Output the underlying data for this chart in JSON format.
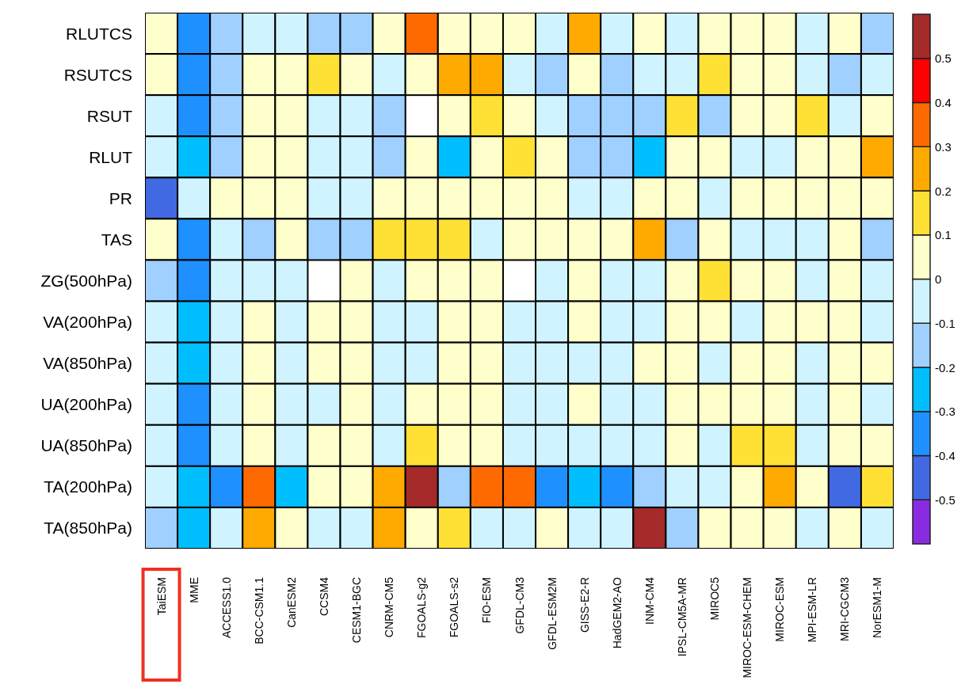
{
  "chart_data": {
    "type": "heatmap",
    "categories": [
      "TaiESM",
      "MME",
      "ACCESS1.0",
      "BCC-CSM1.1",
      "CanESM2",
      "CCSM4",
      "CESM1-BGC",
      "CNRM-CM5",
      "FGOALS-g2",
      "FGOALS-s2",
      "FIO-ESM",
      "GFDL-CM3",
      "GFDL-ESM2M",
      "GISS-E2-R",
      "HadGEM2-AO",
      "INM-CM4",
      "IPSL-CM5A-MR",
      "MIROC5",
      "MIROC-ESM-CHEM",
      "MIROC-ESM",
      "MPI-ESM-LR",
      "MRI-CGCM3",
      "NorESM1-M"
    ],
    "y_categories": [
      "RLUTCS",
      "RSUTCS",
      "RSUT",
      "RLUT",
      "PR",
      "TAS",
      "ZG(500hPa)",
      "VA(200hPa)",
      "VA(850hPa)",
      "UA(200hPa)",
      "UA(850hPa)",
      "TA(200hPa)",
      "TA(850hPa)"
    ],
    "cells": [
      [
        0.05,
        -0.35,
        -0.15,
        -0.05,
        -0.05,
        -0.15,
        -0.15,
        0.05,
        0.35,
        0.05,
        0.05,
        0.05,
        -0.05,
        0.25,
        -0.05,
        0.05,
        -0.05,
        0.05,
        0.05,
        0.05,
        -0.05,
        0.05,
        -0.15
      ],
      [
        0.05,
        -0.35,
        -0.15,
        0.05,
        0.05,
        0.15,
        0.05,
        -0.05,
        0.05,
        0.25,
        0.25,
        -0.05,
        -0.15,
        0.05,
        -0.15,
        -0.05,
        -0.05,
        0.15,
        0.05,
        0.05,
        -0.05,
        -0.15,
        -0.05
      ],
      [
        -0.05,
        -0.35,
        -0.15,
        0.05,
        0.05,
        -0.05,
        -0.05,
        -0.15,
        null,
        0.05,
        0.15,
        0.05,
        -0.05,
        -0.15,
        -0.15,
        -0.15,
        0.15,
        -0.15,
        0.05,
        0.05,
        0.15,
        -0.05,
        0.05
      ],
      [
        -0.05,
        -0.25,
        -0.15,
        0.05,
        0.05,
        -0.05,
        -0.05,
        -0.15,
        0.05,
        -0.25,
        0.05,
        0.15,
        0.05,
        -0.15,
        -0.15,
        -0.25,
        0.05,
        0.05,
        -0.05,
        -0.05,
        0.05,
        0.05,
        0.25
      ],
      [
        -0.45,
        -0.05,
        0.05,
        0.05,
        0.05,
        -0.05,
        -0.05,
        0.05,
        0.05,
        0.05,
        0.05,
        0.05,
        0.05,
        -0.05,
        -0.05,
        0.05,
        0.05,
        -0.05,
        0.05,
        0.05,
        0.05,
        0.05,
        0.05
      ],
      [
        0.05,
        -0.35,
        -0.05,
        -0.15,
        0.05,
        -0.15,
        -0.15,
        0.15,
        0.15,
        0.15,
        -0.05,
        0.05,
        0.05,
        0.05,
        0.05,
        0.25,
        -0.15,
        0.05,
        -0.05,
        -0.05,
        -0.05,
        0.05,
        -0.15
      ],
      [
        -0.15,
        -0.35,
        -0.05,
        -0.05,
        -0.05,
        null,
        0.05,
        -0.05,
        0.05,
        0.05,
        0.05,
        null,
        -0.05,
        0.05,
        -0.05,
        -0.05,
        0.05,
        0.15,
        0.05,
        0.05,
        -0.05,
        0.05,
        -0.05
      ],
      [
        -0.05,
        -0.25,
        -0.05,
        0.05,
        -0.05,
        0.05,
        0.05,
        -0.05,
        -0.05,
        0.05,
        0.05,
        -0.05,
        -0.05,
        0.05,
        -0.05,
        -0.05,
        0.05,
        0.05,
        -0.05,
        0.05,
        0.05,
        0.05,
        -0.05
      ],
      [
        -0.05,
        -0.25,
        -0.05,
        0.05,
        -0.05,
        0.05,
        0.05,
        -0.05,
        -0.05,
        0.05,
        0.05,
        -0.05,
        -0.05,
        -0.05,
        -0.05,
        0.05,
        0.05,
        -0.05,
        0.05,
        0.05,
        -0.05,
        0.05,
        0.05
      ],
      [
        -0.05,
        -0.35,
        -0.05,
        0.05,
        -0.05,
        -0.05,
        0.05,
        -0.05,
        0.05,
        0.05,
        0.05,
        -0.05,
        -0.05,
        0.05,
        -0.05,
        -0.05,
        0.05,
        0.05,
        0.05,
        0.05,
        -0.05,
        0.05,
        -0.05
      ],
      [
        -0.05,
        -0.35,
        -0.05,
        0.05,
        -0.05,
        0.05,
        0.05,
        -0.05,
        0.15,
        0.05,
        0.05,
        -0.05,
        -0.05,
        -0.05,
        -0.05,
        -0.05,
        0.05,
        -0.05,
        0.15,
        0.15,
        -0.05,
        0.05,
        0.05
      ],
      [
        -0.05,
        -0.25,
        -0.35,
        0.35,
        -0.25,
        0.05,
        0.05,
        0.25,
        0.55,
        -0.15,
        0.35,
        0.35,
        -0.35,
        -0.25,
        -0.35,
        -0.15,
        -0.05,
        -0.05,
        0.05,
        0.25,
        0.05,
        -0.45,
        0.15
      ],
      [
        -0.15,
        -0.25,
        -0.05,
        0.25,
        0.05,
        -0.05,
        -0.05,
        0.25,
        0.05,
        0.15,
        -0.05,
        -0.05,
        0.05,
        -0.05,
        -0.05,
        0.55,
        -0.15,
        0.05,
        0.05,
        0.05,
        -0.05,
        0.05,
        -0.05
      ]
    ],
    "clim": [
      -0.6,
      0.6
    ],
    "cticks": [
      -0.5,
      -0.4,
      -0.3,
      -0.2,
      -0.1,
      0,
      0.1,
      0.2,
      0.3,
      0.4,
      0.5
    ],
    "colors": [
      "#8a2be2",
      "#4169e1",
      "#1e90ff",
      "#00bfff",
      "#a0d0ff",
      "#d0f4ff",
      "#ffffcc",
      "#ffe135",
      "#ffaa00",
      "#ff6a00",
      "#ff0000",
      "#a52a2a"
    ]
  }
}
